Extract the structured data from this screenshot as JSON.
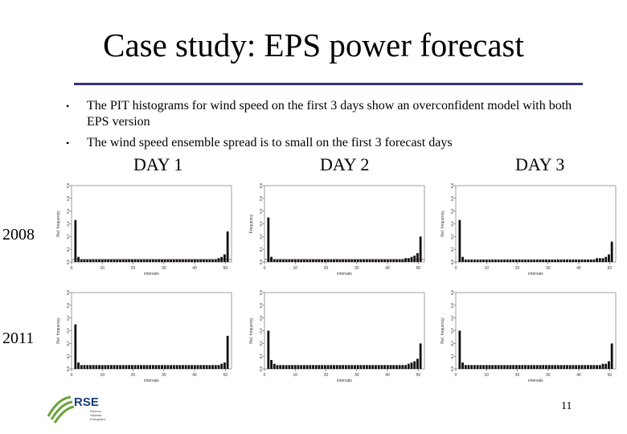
{
  "slide": {
    "title": "Case study: EPS power forecast",
    "bullets": [
      "The PIT histograms  for wind speed on the first 3  days show an overconfident model with both EPS version",
      "The wind speed ensemble spread is to small on the first 3 forecast days"
    ],
    "days": [
      "DAY 1",
      "DAY 2",
      "DAY 3"
    ],
    "years": [
      "2008",
      "2011"
    ],
    "page_number": "11",
    "logo_text": "RSE",
    "logo_subtext": [
      "Ricerca",
      "Sistema",
      "Energetico"
    ]
  },
  "chart_data": [
    {
      "type": "bar",
      "row": "2008",
      "column": "DAY 1",
      "xlabel": "intervals",
      "ylabel": "Rel. frequency",
      "xlim": [
        0,
        52
      ],
      "ylim": [
        0,
        0.6
      ],
      "xticks": [
        0,
        10,
        20,
        30,
        40,
        50
      ],
      "yticks": [
        0.0,
        0.1,
        0.2,
        0.3,
        0.4,
        0.5,
        0.6
      ],
      "reference_line": 0.02,
      "values": [
        0.33,
        0.04,
        0.02,
        0.02,
        0.02,
        0.02,
        0.02,
        0.02,
        0.02,
        0.02,
        0.02,
        0.02,
        0.02,
        0.02,
        0.02,
        0.02,
        0.02,
        0.02,
        0.02,
        0.02,
        0.02,
        0.02,
        0.02,
        0.02,
        0.02,
        0.02,
        0.02,
        0.02,
        0.02,
        0.02,
        0.02,
        0.02,
        0.02,
        0.02,
        0.02,
        0.02,
        0.02,
        0.02,
        0.02,
        0.02,
        0.02,
        0.02,
        0.02,
        0.02,
        0.02,
        0.02,
        0.02,
        0.02,
        0.03,
        0.04,
        0.06,
        0.24
      ]
    },
    {
      "type": "bar",
      "row": "2008",
      "column": "DAY 2",
      "xlabel": "intervals",
      "ylabel": "Frequency",
      "xlim": [
        0,
        52
      ],
      "ylim": [
        0,
        0.6
      ],
      "xticks": [
        0,
        10,
        20,
        30,
        40,
        50
      ],
      "yticks": [
        0.0,
        0.1,
        0.2,
        0.3,
        0.4,
        0.5,
        0.6
      ],
      "reference_line": 0.02,
      "values": [
        0.35,
        0.04,
        0.02,
        0.02,
        0.02,
        0.02,
        0.02,
        0.02,
        0.02,
        0.02,
        0.02,
        0.02,
        0.02,
        0.02,
        0.02,
        0.02,
        0.02,
        0.02,
        0.02,
        0.02,
        0.02,
        0.02,
        0.02,
        0.02,
        0.02,
        0.02,
        0.02,
        0.02,
        0.02,
        0.02,
        0.02,
        0.02,
        0.02,
        0.02,
        0.02,
        0.02,
        0.02,
        0.02,
        0.02,
        0.02,
        0.02,
        0.02,
        0.02,
        0.02,
        0.02,
        0.02,
        0.03,
        0.03,
        0.04,
        0.05,
        0.07,
        0.2
      ]
    },
    {
      "type": "bar",
      "row": "2008",
      "column": "DAY 3",
      "xlabel": "intervals",
      "ylabel": "Rel. frequency",
      "xlim": [
        0,
        52
      ],
      "ylim": [
        0,
        0.6
      ],
      "xticks": [
        0,
        10,
        20,
        30,
        40,
        50
      ],
      "yticks": [
        0.0,
        0.1,
        0.2,
        0.3,
        0.4,
        0.5,
        0.6
      ],
      "values": [
        0.33,
        0.04,
        0.02,
        0.02,
        0.02,
        0.02,
        0.02,
        0.02,
        0.02,
        0.02,
        0.02,
        0.02,
        0.02,
        0.02,
        0.02,
        0.02,
        0.02,
        0.02,
        0.02,
        0.02,
        0.02,
        0.02,
        0.02,
        0.02,
        0.02,
        0.02,
        0.02,
        0.02,
        0.02,
        0.02,
        0.02,
        0.02,
        0.02,
        0.02,
        0.02,
        0.02,
        0.02,
        0.02,
        0.02,
        0.02,
        0.02,
        0.02,
        0.02,
        0.02,
        0.02,
        0.02,
        0.03,
        0.03,
        0.03,
        0.04,
        0.06,
        0.16
      ]
    },
    {
      "type": "bar",
      "row": "2011",
      "column": "DAY 1",
      "xlabel": "intervals",
      "ylabel": "Rel. frequency",
      "xlim": [
        0,
        52
      ],
      "ylim": [
        0,
        0.6
      ],
      "xticks": [
        0,
        10,
        20,
        30,
        40,
        50
      ],
      "yticks": [
        0.0,
        0.1,
        0.2,
        0.3,
        0.4,
        0.5,
        0.6
      ],
      "values": [
        0.35,
        0.05,
        0.03,
        0.03,
        0.03,
        0.03,
        0.03,
        0.03,
        0.03,
        0.03,
        0.03,
        0.03,
        0.03,
        0.03,
        0.03,
        0.03,
        0.03,
        0.03,
        0.03,
        0.03,
        0.03,
        0.03,
        0.03,
        0.03,
        0.03,
        0.03,
        0.03,
        0.03,
        0.03,
        0.03,
        0.03,
        0.03,
        0.03,
        0.03,
        0.03,
        0.03,
        0.03,
        0.03,
        0.03,
        0.03,
        0.03,
        0.03,
        0.03,
        0.03,
        0.03,
        0.03,
        0.03,
        0.03,
        0.03,
        0.04,
        0.05,
        0.26
      ]
    },
    {
      "type": "bar",
      "row": "2011",
      "column": "DAY 2",
      "xlabel": "intervals",
      "ylabel": "Rel. frequency",
      "xlim": [
        0,
        52
      ],
      "ylim": [
        0,
        0.6
      ],
      "xticks": [
        0,
        10,
        20,
        30,
        40,
        50
      ],
      "yticks": [
        0.0,
        0.1,
        0.2,
        0.3,
        0.4,
        0.5,
        0.6
      ],
      "values": [
        0.3,
        0.07,
        0.04,
        0.03,
        0.03,
        0.03,
        0.03,
        0.03,
        0.03,
        0.03,
        0.03,
        0.03,
        0.03,
        0.03,
        0.03,
        0.03,
        0.03,
        0.03,
        0.03,
        0.03,
        0.03,
        0.03,
        0.03,
        0.03,
        0.03,
        0.03,
        0.03,
        0.03,
        0.03,
        0.03,
        0.03,
        0.03,
        0.03,
        0.03,
        0.03,
        0.03,
        0.03,
        0.03,
        0.03,
        0.03,
        0.03,
        0.03,
        0.03,
        0.03,
        0.03,
        0.03,
        0.03,
        0.04,
        0.05,
        0.06,
        0.08,
        0.2
      ]
    },
    {
      "type": "bar",
      "row": "2011",
      "column": "DAY 3",
      "xlabel": "intervals",
      "ylabel": "Rel. frequency",
      "xlim": [
        0,
        52
      ],
      "ylim": [
        0,
        0.6
      ],
      "xticks": [
        0,
        10,
        20,
        30,
        40,
        50
      ],
      "yticks": [
        0.0,
        0.1,
        0.2,
        0.3,
        0.4,
        0.5,
        0.6
      ],
      "values": [
        0.3,
        0.05,
        0.03,
        0.03,
        0.03,
        0.03,
        0.03,
        0.03,
        0.03,
        0.03,
        0.03,
        0.03,
        0.03,
        0.03,
        0.03,
        0.03,
        0.03,
        0.03,
        0.03,
        0.03,
        0.03,
        0.03,
        0.03,
        0.03,
        0.03,
        0.03,
        0.03,
        0.03,
        0.03,
        0.03,
        0.03,
        0.03,
        0.03,
        0.03,
        0.03,
        0.03,
        0.03,
        0.03,
        0.03,
        0.03,
        0.03,
        0.03,
        0.03,
        0.03,
        0.03,
        0.03,
        0.03,
        0.03,
        0.04,
        0.04,
        0.06,
        0.2
      ]
    }
  ]
}
